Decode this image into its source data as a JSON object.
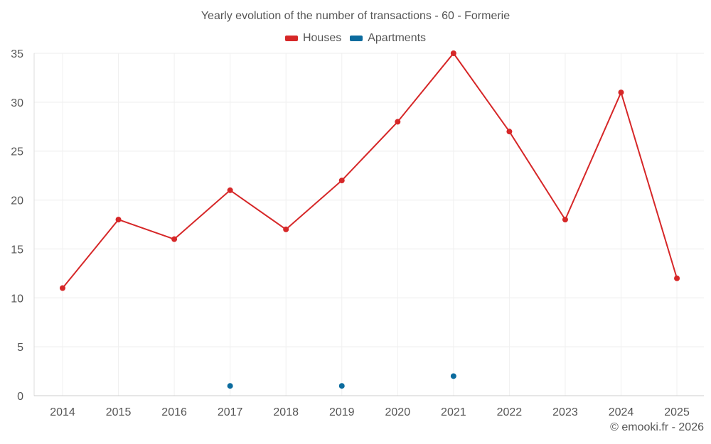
{
  "chart_data": {
    "type": "line",
    "title": "Yearly evolution of the number of transactions - 60 - Formerie",
    "xlabel": "",
    "ylabel": "",
    "categories": [
      "2014",
      "2015",
      "2016",
      "2017",
      "2018",
      "2019",
      "2020",
      "2021",
      "2022",
      "2023",
      "2024",
      "2025"
    ],
    "ylim": [
      0,
      35
    ],
    "yticks": [
      0,
      5,
      10,
      15,
      20,
      25,
      30,
      35
    ],
    "grid": true,
    "legend_position": "top-center",
    "series": [
      {
        "name": "Houses",
        "color": "#d62728",
        "values": [
          11,
          18,
          16,
          21,
          17,
          22,
          28,
          35,
          27,
          18,
          31,
          12
        ]
      },
      {
        "name": "Apartments",
        "color": "#0b6b9e",
        "values": [
          null,
          null,
          null,
          1,
          null,
          1,
          null,
          2,
          null,
          null,
          null,
          null
        ]
      }
    ]
  },
  "footer": {
    "copyright": "© emooki.fr - 2026"
  }
}
